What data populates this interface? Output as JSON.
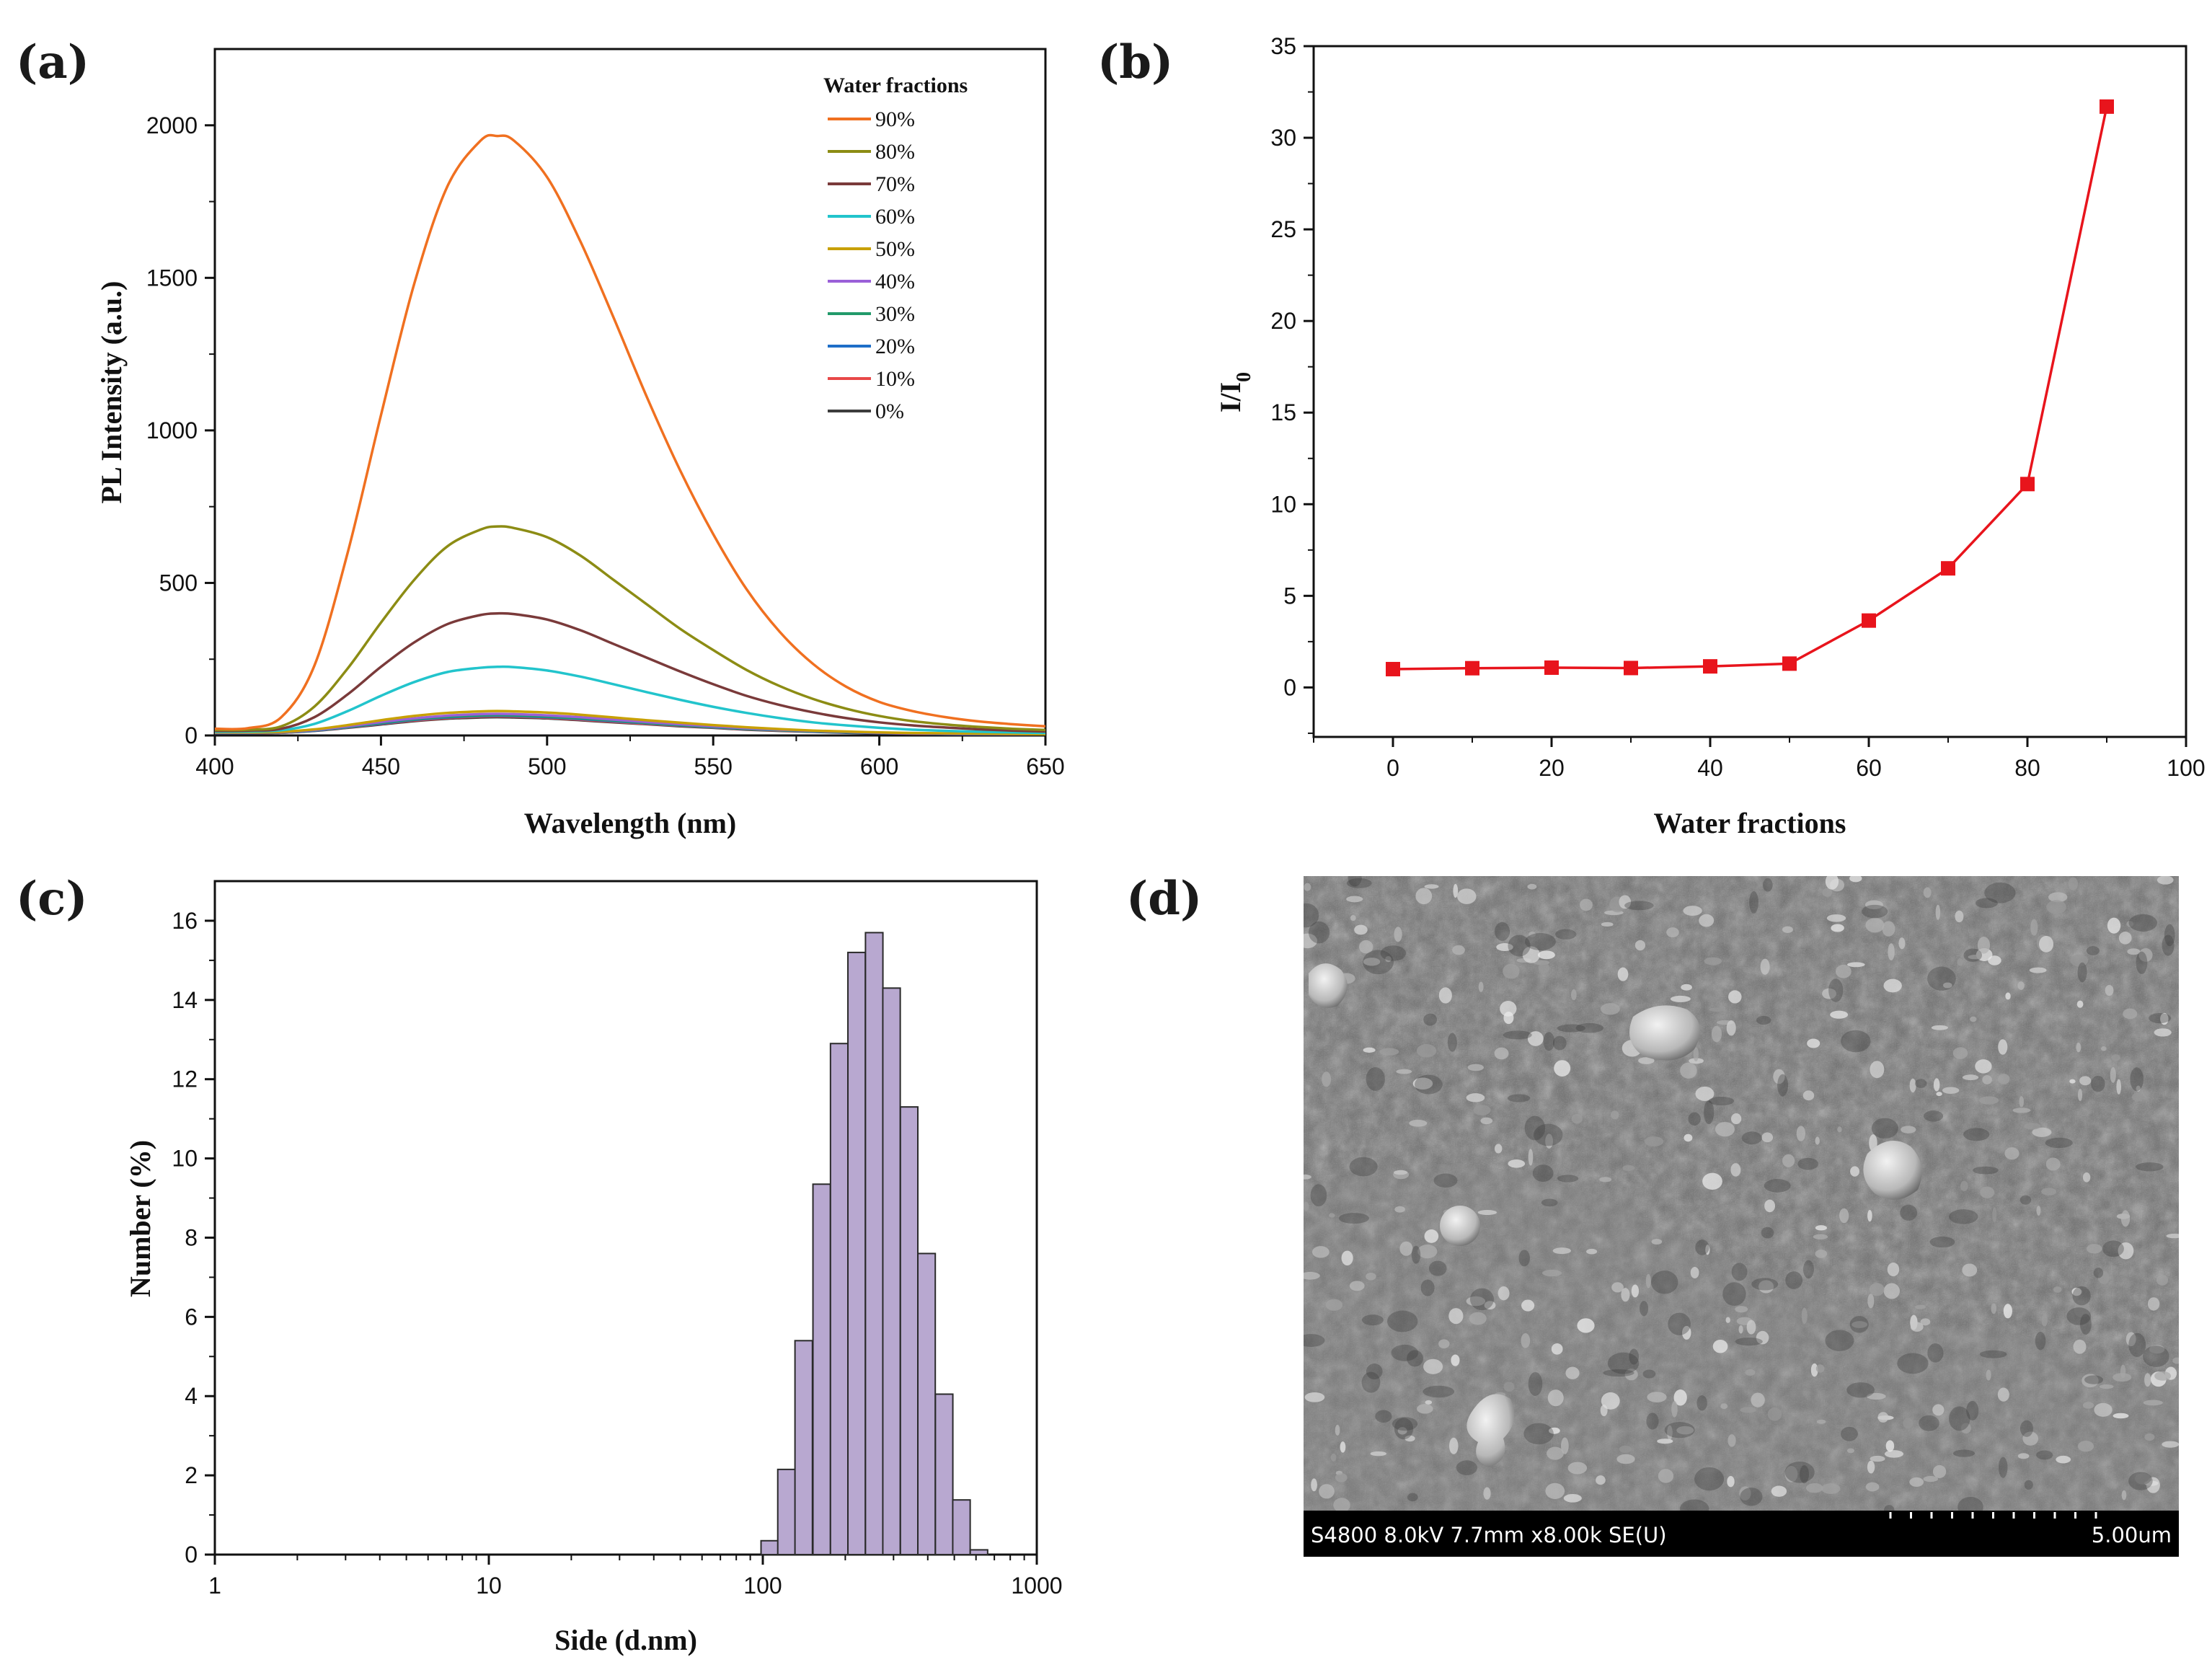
{
  "chart_data": [
    {
      "panel": "(a)",
      "type": "line",
      "xlabel": "Wavelength (nm)",
      "ylabel": "PL Intensity (a.u.)",
      "xlim": [
        400,
        650
      ],
      "ylim": [
        0,
        2250
      ],
      "xticks": [
        400,
        450,
        500,
        550,
        600,
        650
      ],
      "yticks": [
        0,
        500,
        1000,
        1500,
        2000
      ],
      "legend_title": "Water fractions",
      "legend_position": "top-right",
      "x": [
        400,
        410,
        420,
        430,
        440,
        450,
        460,
        470,
        480,
        485,
        490,
        500,
        510,
        520,
        530,
        540,
        550,
        560,
        570,
        580,
        590,
        600,
        610,
        620,
        630,
        640,
        650
      ],
      "series": [
        {
          "name": "90%",
          "color": "#f07020",
          "values": [
            22,
            24,
            60,
            230,
            600,
            1050,
            1480,
            1800,
            1950,
            1965,
            1950,
            1830,
            1620,
            1370,
            1110,
            870,
            660,
            480,
            340,
            235,
            160,
            110,
            80,
            60,
            46,
            37,
            30
          ]
        },
        {
          "name": "80%",
          "color": "#8c8c14",
          "values": [
            18,
            19,
            30,
            95,
            220,
            370,
            510,
            620,
            675,
            685,
            680,
            650,
            590,
            510,
            430,
            350,
            280,
            215,
            162,
            120,
            88,
            64,
            47,
            36,
            28,
            22,
            18
          ]
        },
        {
          "name": "70%",
          "color": "#7a3a3a",
          "values": [
            15,
            16,
            22,
            60,
            135,
            225,
            305,
            365,
            395,
            400,
            398,
            380,
            345,
            300,
            255,
            210,
            168,
            130,
            100,
            76,
            57,
            43,
            33,
            26,
            20,
            16,
            13
          ]
        },
        {
          "name": "60%",
          "color": "#22c4cc",
          "values": [
            12,
            13,
            17,
            38,
            80,
            130,
            175,
            208,
            222,
            225,
            224,
            213,
            193,
            168,
            142,
            117,
            94,
            74,
            57,
            43,
            33,
            25,
            19,
            15,
            12,
            10,
            8
          ]
        },
        {
          "name": "50%",
          "color": "#c8a000",
          "values": [
            10,
            10,
            12,
            20,
            34,
            50,
            64,
            74,
            79,
            80,
            79,
            75,
            68,
            59,
            50,
            42,
            34,
            27,
            21,
            16,
            13,
            10,
            8,
            7,
            6,
            5,
            4
          ]
        },
        {
          "name": "40%",
          "color": "#9a60d8",
          "values": [
            9,
            9,
            11,
            18,
            30,
            44,
            56,
            65,
            70,
            71,
            70,
            66,
            60,
            52,
            44,
            37,
            30,
            24,
            19,
            15,
            12,
            9,
            7,
            6,
            5,
            4,
            4
          ]
        },
        {
          "name": "30%",
          "color": "#229a6a",
          "values": [
            9,
            9,
            10,
            17,
            28,
            41,
            53,
            61,
            66,
            67,
            66,
            62,
            56,
            49,
            41,
            34,
            28,
            22,
            17,
            14,
            11,
            9,
            7,
            6,
            5,
            4,
            4
          ]
        },
        {
          "name": "20%",
          "color": "#1e6ec8",
          "values": [
            8,
            8,
            10,
            16,
            27,
            39,
            51,
            59,
            64,
            65,
            64,
            60,
            54,
            47,
            40,
            33,
            27,
            21,
            17,
            13,
            10,
            8,
            7,
            5,
            4,
            4,
            3
          ]
        },
        {
          "name": "10%",
          "color": "#e84848",
          "values": [
            8,
            8,
            9,
            16,
            26,
            38,
            49,
            57,
            62,
            63,
            62,
            58,
            52,
            45,
            38,
            32,
            26,
            20,
            16,
            13,
            10,
            8,
            6,
            5,
            4,
            4,
            3
          ]
        },
        {
          "name": "0%",
          "color": "#3c3c3c",
          "values": [
            8,
            8,
            9,
            15,
            25,
            36,
            47,
            55,
            59,
            60,
            59,
            56,
            50,
            43,
            37,
            30,
            25,
            19,
            15,
            12,
            9,
            7,
            6,
            5,
            4,
            3,
            3
          ]
        }
      ]
    },
    {
      "panel": "(b)",
      "type": "line",
      "xlabel": "Water fractions",
      "ylabel_main": "I/I",
      "ylabel_sub": "0",
      "xlim": [
        -10,
        100
      ],
      "ylim": [
        -2.7,
        35
      ],
      "xticks": [
        0,
        20,
        40,
        60,
        80,
        100
      ],
      "yticks": [
        0,
        5,
        10,
        15,
        20,
        25,
        30,
        35
      ],
      "color": "#e8141c",
      "marker": "square",
      "x": [
        0,
        10,
        20,
        30,
        40,
        50,
        60,
        70,
        80,
        90
      ],
      "y": [
        1.0,
        1.05,
        1.08,
        1.06,
        1.15,
        1.3,
        3.65,
        6.5,
        11.1,
        31.7
      ]
    },
    {
      "panel": "(c)",
      "type": "bar",
      "xscale": "log",
      "xlabel": "Side (d.nm)",
      "ylabel": "Number (%)",
      "xlim": [
        1,
        1000
      ],
      "ylim": [
        0,
        17
      ],
      "xticks": [
        1,
        10,
        100,
        1000
      ],
      "yticks": [
        0,
        2,
        4,
        6,
        8,
        10,
        12,
        14,
        16
      ],
      "bar_color": "#b8a8d0",
      "bar_edge": "#2a2a2a",
      "centers": [
        106,
        122,
        141,
        164,
        190,
        220,
        255,
        295,
        342,
        396,
        459,
        531,
        615
      ],
      "values": [
        0.35,
        2.15,
        5.4,
        9.35,
        12.9,
        15.2,
        15.7,
        14.3,
        11.3,
        7.6,
        4.05,
        1.38,
        0.12
      ]
    }
  ],
  "panel_d": {
    "label": "(d)",
    "sem_info": "S4800 8.0kV 7.7mm x8.00k SE(U)",
    "scale_label": "5.00um"
  },
  "labels": {
    "a": "(a)",
    "b": "(b)",
    "c": "(c)",
    "d": "(d)"
  }
}
